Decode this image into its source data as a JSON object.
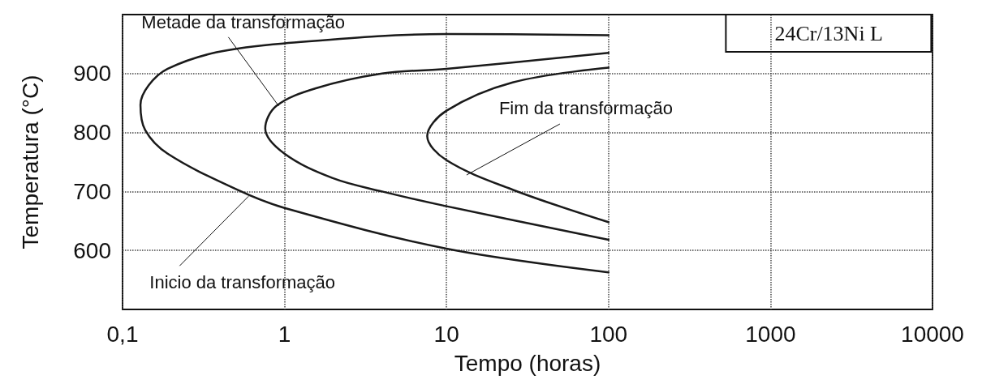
{
  "chart_data": {
    "type": "line",
    "title": "24Cr/13Ni L",
    "xlabel": "Tempo (horas)",
    "ylabel": "Temperatura (°C)",
    "log": "x",
    "xlim": [
      0.1,
      10000
    ],
    "xticks": [
      {
        "value": 0.1,
        "label": "0,1"
      },
      1,
      10,
      100,
      1000,
      10000
    ],
    "ylim": [
      500,
      1000
    ],
    "yticks": [
      600,
      700,
      800,
      900
    ],
    "grid": true,
    "marker": "none",
    "line_style": "solid",
    "series": [
      {
        "color": "#1a1a1a",
        "x": [
          100,
          10.1,
          0.98,
          0.38,
          0.19,
          0.145,
          0.129,
          0.138,
          0.19,
          0.51,
          1,
          10,
          100
        ],
        "values": [
          965,
          967,
          951,
          936,
          908,
          880,
          847,
          804,
          764,
          703,
          672,
          603,
          563
        ]
      },
      {
        "color": "#1a1a1a",
        "x": [
          100,
          10,
          4,
          1.56,
          0.89,
          0.76,
          1,
          1.97,
          4,
          10,
          100
        ],
        "values": [
          935,
          908,
          900,
          875,
          845,
          807,
          764,
          723,
          700,
          675,
          618
        ]
      },
      {
        "color": "#1a1a1a",
        "x": [
          100,
          25.6,
          10,
          7.6,
          10,
          25.6,
          100
        ],
        "values": [
          910,
          885,
          837,
          794,
          753,
          703,
          648
        ]
      }
    ],
    "annotations": [
      {
        "text": "Metade da transformação",
        "x": 0.92,
        "y": 845
      },
      {
        "text": "Inicio da transformação",
        "x": 0.6,
        "y": 692
      },
      {
        "text": "Fim da transformação",
        "x": 13.3,
        "y": 728
      }
    ]
  }
}
